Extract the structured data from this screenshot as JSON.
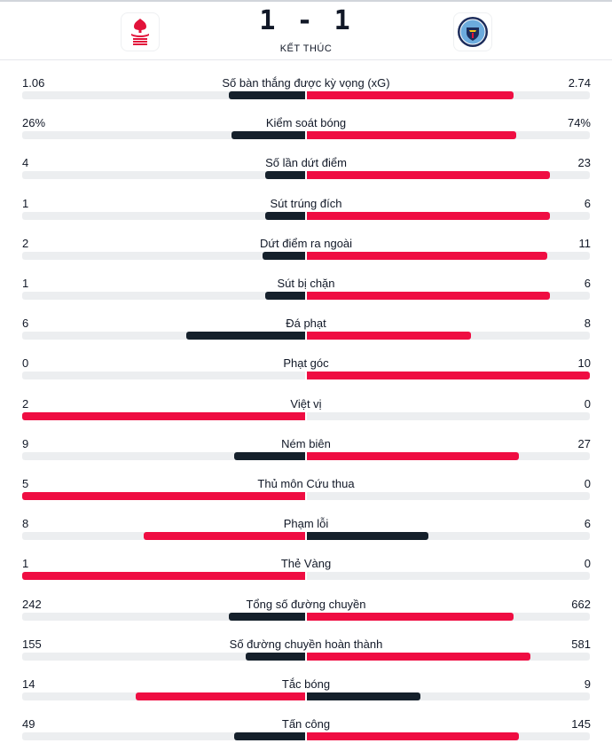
{
  "match": {
    "score": "1 - 1",
    "status": "KẾT THÚC",
    "home_team_icon": "nottingham-forest-crest-icon",
    "away_team_icon": "manchester-city-crest-icon"
  },
  "colors": {
    "leader": "#ef0d42",
    "trailer": "#15202b",
    "track": "#eceef0"
  },
  "stats": [
    {
      "label": "Số bàn thắng được kỳ vọng (xG)",
      "home": "1.06",
      "away": "2.74",
      "home_fill": 0.27,
      "away_fill": 0.73,
      "home_color": "trailer",
      "away_color": "leader"
    },
    {
      "label": "Kiểm soát bóng",
      "home": "26%",
      "away": "74%",
      "home_fill": 0.26,
      "away_fill": 0.74,
      "home_color": "trailer",
      "away_color": "leader"
    },
    {
      "label": "Số lần dứt điểm",
      "home": "4",
      "away": "23",
      "home_fill": 0.14,
      "away_fill": 0.86,
      "home_color": "trailer",
      "away_color": "leader"
    },
    {
      "label": "Sút trúng đích",
      "home": "1",
      "away": "6",
      "home_fill": 0.14,
      "away_fill": 0.86,
      "home_color": "trailer",
      "away_color": "leader"
    },
    {
      "label": "Dứt điểm ra ngoài",
      "home": "2",
      "away": "11",
      "home_fill": 0.15,
      "away_fill": 0.85,
      "home_color": "trailer",
      "away_color": "leader"
    },
    {
      "label": "Sút bị chặn",
      "home": "1",
      "away": "6",
      "home_fill": 0.14,
      "away_fill": 0.86,
      "home_color": "trailer",
      "away_color": "leader"
    },
    {
      "label": "Đá phạt",
      "home": "6",
      "away": "8",
      "home_fill": 0.42,
      "away_fill": 0.58,
      "home_color": "trailer",
      "away_color": "leader"
    },
    {
      "label": "Phạt góc",
      "home": "0",
      "away": "10",
      "home_fill": 0.0,
      "away_fill": 1.0,
      "home_color": "trailer",
      "away_color": "leader"
    },
    {
      "label": "Việt vị",
      "home": "2",
      "away": "0",
      "home_fill": 1.0,
      "away_fill": 0.0,
      "home_color": "leader",
      "away_color": "trailer"
    },
    {
      "label": "Ném biên",
      "home": "9",
      "away": "27",
      "home_fill": 0.25,
      "away_fill": 0.75,
      "home_color": "trailer",
      "away_color": "leader"
    },
    {
      "label": "Thủ môn Cứu thua",
      "home": "5",
      "away": "0",
      "home_fill": 1.0,
      "away_fill": 0.0,
      "home_color": "leader",
      "away_color": "trailer"
    },
    {
      "label": "Phạm lỗi",
      "home": "8",
      "away": "6",
      "home_fill": 0.57,
      "away_fill": 0.43,
      "home_color": "leader",
      "away_color": "trailer"
    },
    {
      "label": "Thẻ Vàng",
      "home": "1",
      "away": "0",
      "home_fill": 1.0,
      "away_fill": 0.0,
      "home_color": "leader",
      "away_color": "trailer"
    },
    {
      "label": "Tổng số đường chuyền",
      "home": "242",
      "away": "662",
      "home_fill": 0.27,
      "away_fill": 0.73,
      "home_color": "trailer",
      "away_color": "leader"
    },
    {
      "label": "Số đường chuyền hoàn thành",
      "home": "155",
      "away": "581",
      "home_fill": 0.21,
      "away_fill": 0.79,
      "home_color": "trailer",
      "away_color": "leader"
    },
    {
      "label": "Tắc bóng",
      "home": "14",
      "away": "9",
      "home_fill": 0.6,
      "away_fill": 0.4,
      "home_color": "leader",
      "away_color": "trailer"
    },
    {
      "label": "Tấn công",
      "home": "49",
      "away": "145",
      "home_fill": 0.25,
      "away_fill": 0.75,
      "home_color": "trailer",
      "away_color": "leader"
    }
  ]
}
